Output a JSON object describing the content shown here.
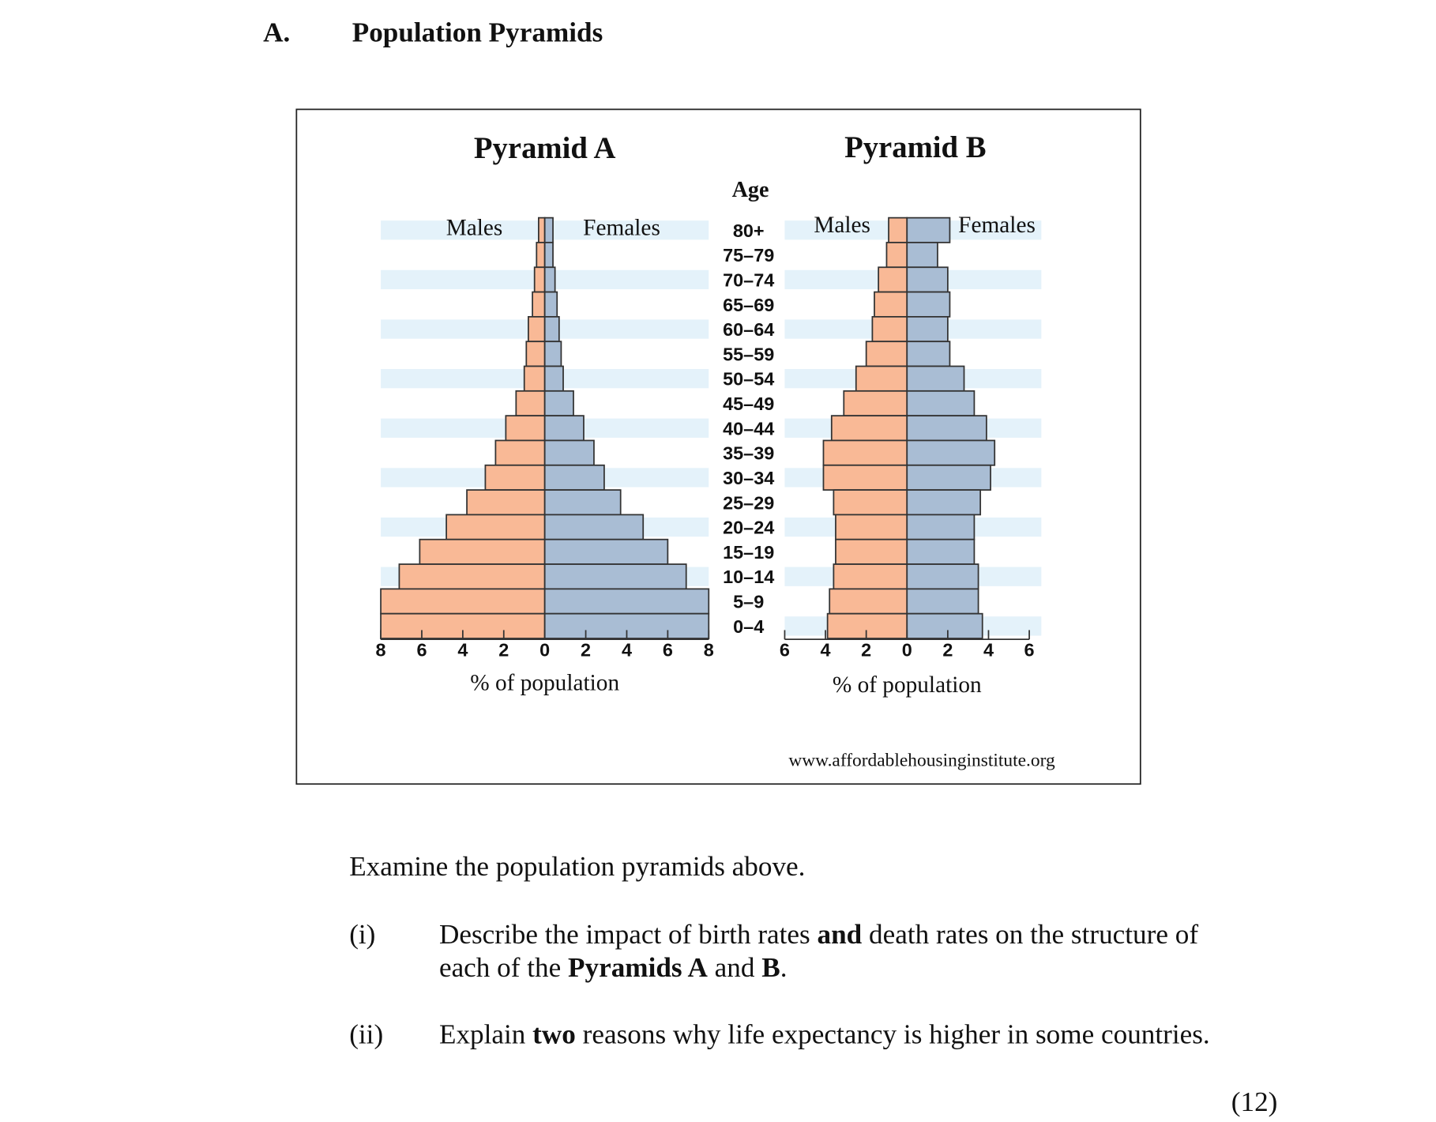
{
  "header": {
    "label": "A.",
    "title": "Population Pyramids"
  },
  "chart_data": [
    {
      "type": "pyramid",
      "title": "Pyramid A",
      "y_label": "Age",
      "x_label": "% of population",
      "categories": [
        "80+",
        "75–79",
        "70–74",
        "65–69",
        "60–64",
        "55–59",
        "50–54",
        "45–49",
        "40–44",
        "35–39",
        "30–34",
        "25–29",
        "20–24",
        "15–19",
        "10–14",
        "5–9",
        "0–4"
      ],
      "series": [
        {
          "name": "Males",
          "color": "#f9b996",
          "values": [
            0.3,
            0.4,
            0.5,
            0.6,
            0.8,
            0.9,
            1.0,
            1.4,
            1.9,
            2.4,
            2.9,
            3.8,
            4.8,
            6.1,
            7.1,
            8.0,
            8.0
          ]
        },
        {
          "name": "Females",
          "color": "#a9bdd4",
          "values": [
            0.4,
            0.4,
            0.5,
            0.6,
            0.7,
            0.8,
            0.9,
            1.4,
            1.9,
            2.4,
            2.9,
            3.7,
            4.8,
            6.0,
            6.9,
            8.0,
            8.0
          ]
        }
      ],
      "xlim": [
        -8,
        8
      ],
      "xticks": [
        {
          "value": -8,
          "label": "8"
        },
        {
          "value": -6,
          "label": "6"
        },
        {
          "value": -4,
          "label": "4"
        },
        {
          "value": -2,
          "label": "2"
        },
        0,
        2,
        4,
        6,
        8
      ]
    },
    {
      "type": "pyramid",
      "title": "Pyramid B",
      "x_label": "% of population",
      "series": [
        {
          "name": "Males",
          "color": "#f9b996",
          "values": [
            0.9,
            1.0,
            1.4,
            1.6,
            1.7,
            2.0,
            2.5,
            3.1,
            3.7,
            4.1,
            4.1,
            3.6,
            3.5,
            3.5,
            3.6,
            3.8,
            3.9
          ]
        },
        {
          "name": "Females",
          "color": "#a9bdd4",
          "values": [
            2.1,
            1.5,
            2.0,
            2.1,
            2.0,
            2.1,
            2.8,
            3.3,
            3.9,
            4.3,
            4.1,
            3.6,
            3.3,
            3.3,
            3.5,
            3.5,
            3.7
          ]
        }
      ],
      "xlim": [
        -6,
        6
      ],
      "xticks": [
        {
          "value": -6,
          "label": "6"
        },
        {
          "value": -4,
          "label": "4"
        },
        {
          "value": -2,
          "label": "2"
        },
        0,
        2,
        4,
        6
      ]
    }
  ],
  "source": "www.affordablehousinginstitute.org",
  "instruction": "Examine the population pyramids above.",
  "questions": [
    {
      "number": "(i)",
      "lines": [
        [
          {
            "text": "Describe the impact of birth rates ",
            "bold": false
          },
          {
            "text": "and",
            "bold": true
          },
          {
            "text": " death rates on the structure of",
            "bold": false
          }
        ],
        [
          {
            "text": "each of the ",
            "bold": false
          },
          {
            "text": "Pyramids A",
            "bold": true
          },
          {
            "text": " and ",
            "bold": false
          },
          {
            "text": "B",
            "bold": true
          },
          {
            "text": ".",
            "bold": false
          }
        ]
      ]
    },
    {
      "number": "(ii)",
      "lines": [
        [
          {
            "text": "Explain ",
            "bold": false
          },
          {
            "text": "two",
            "bold": true
          },
          {
            "text": " reasons why life expectancy is higher in some countries.",
            "bold": false
          }
        ]
      ]
    }
  ],
  "marks": "(12)"
}
